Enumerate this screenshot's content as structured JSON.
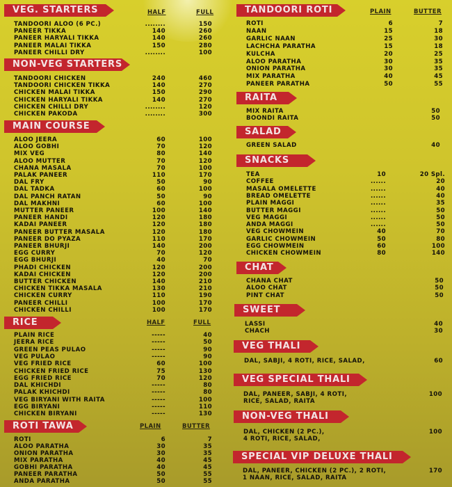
{
  "left": [
    {
      "title": "VEG. STARTERS",
      "headers": [
        "HALF",
        "FULL"
      ],
      "items": [
        {
          "name": "TANDOORI ALOO (6 PC.)",
          "a": "........",
          "b": "150"
        },
        {
          "name": "PANEER TIKKA",
          "a": "140",
          "b": "260"
        },
        {
          "name": "PANEER HARYALI TIKKA",
          "a": "140",
          "b": "260"
        },
        {
          "name": "PANEER MALAI TIKKA",
          "a": "150",
          "b": "280"
        },
        {
          "name": "PANEER CHILLI DRY",
          "a": "........",
          "b": "100"
        }
      ]
    },
    {
      "title": "NON-VEG STARTERS",
      "headers": [],
      "items": [
        {
          "name": "TANDOORI CHICKEN",
          "a": "240",
          "b": "460"
        },
        {
          "name": "TANDOORI CHICKEN TIKKA",
          "a": "140",
          "b": "270"
        },
        {
          "name": "CHICKEN MALAI TIKKA",
          "a": "150",
          "b": "290"
        },
        {
          "name": "CHICKEN HARYALI TIKKA",
          "a": "140",
          "b": "270"
        },
        {
          "name": "CHICKEN CHILLI DRY",
          "a": "........",
          "b": "120"
        },
        {
          "name": "CHICKEN PAKODA",
          "a": "........",
          "b": "300"
        }
      ]
    },
    {
      "title": "MAIN COURSE",
      "headers": [],
      "items": [
        {
          "name": "ALOO JEERA",
          "a": "60",
          "b": "100"
        },
        {
          "name": "ALOO GOBHI",
          "a": "70",
          "b": "120"
        },
        {
          "name": "MIX VEG",
          "a": "80",
          "b": "140"
        },
        {
          "name": "ALOO MUTTER",
          "a": "70",
          "b": "120"
        },
        {
          "name": "CHANA MASALA",
          "a": "70",
          "b": "100"
        },
        {
          "name": "PALAK PANEER",
          "a": "110",
          "b": "170"
        },
        {
          "name": "DAL FRY",
          "a": "50",
          "b": "90"
        },
        {
          "name": "DAL TADKA",
          "a": "60",
          "b": "100"
        },
        {
          "name": "DAL PANCH RATAN",
          "a": "50",
          "b": "90"
        },
        {
          "name": "DAL MAKHNI",
          "a": "60",
          "b": "100"
        },
        {
          "name": "MUTTER PANEER",
          "a": "100",
          "b": "140"
        },
        {
          "name": "PANEER HANDI",
          "a": "120",
          "b": "180"
        },
        {
          "name": "KADAI PANEER",
          "a": "120",
          "b": "180"
        },
        {
          "name": "PANEER BUTTER MASALA",
          "a": "120",
          "b": "180"
        },
        {
          "name": "PANEER DO PYAZA",
          "a": "110",
          "b": "170"
        },
        {
          "name": "PANEER BHURJI",
          "a": "140",
          "b": "200"
        },
        {
          "name": "EGG CURRY",
          "a": "70",
          "b": "120"
        },
        {
          "name": "EGG BHURJI",
          "a": "40",
          "b": "70"
        },
        {
          "name": "PHADI CHICKEN",
          "a": "120",
          "b": "200"
        },
        {
          "name": "KADAI CHICKEN",
          "a": "120",
          "b": "200"
        },
        {
          "name": "BUTTER CHICKEN",
          "a": "140",
          "b": "210"
        },
        {
          "name": "CHICKEN TIKKA MASALA",
          "a": "130",
          "b": "210"
        },
        {
          "name": "CHICKEN CURRY",
          "a": "110",
          "b": "190"
        },
        {
          "name": "PANEER CHILLI",
          "a": "100",
          "b": "170"
        },
        {
          "name": "CHICKEN CHILLI",
          "a": "100",
          "b": "170"
        }
      ]
    },
    {
      "title": "RICE",
      "headers": [
        "HALF",
        "FULL"
      ],
      "items": [
        {
          "name": "PLAIN RICE",
          "a": "-----",
          "b": "40"
        },
        {
          "name": "JEERA RICE",
          "a": "-----",
          "b": "50"
        },
        {
          "name": "GREEN PEAS PULAO",
          "a": "-----",
          "b": "90"
        },
        {
          "name": "VEG PULAO",
          "a": "-----",
          "b": "90"
        },
        {
          "name": "VEG FRIED RICE",
          "a": "60",
          "b": "100"
        },
        {
          "name": "CHICKEN FRIED RICE",
          "a": "75",
          "b": "130"
        },
        {
          "name": "EGG FRIED RICE",
          "a": "70",
          "b": "120"
        },
        {
          "name": "DAL KHICHDI",
          "a": "-----",
          "b": "80"
        },
        {
          "name": "PALAK KHICHDI",
          "a": "-----",
          "b": "80"
        },
        {
          "name": "VEG BIRYANI WITH RAITA",
          "a": "-----",
          "b": "100"
        },
        {
          "name": "EGG BIRYANI",
          "a": "-----",
          "b": "110"
        },
        {
          "name": "CHICKEN BIRYANI",
          "a": "-----",
          "b": "130"
        }
      ]
    },
    {
      "title": "ROTI TAWA",
      "headers": [
        "PLAIN",
        "BUTTER"
      ],
      "items": [
        {
          "name": "ROTI",
          "a": "6",
          "b": "7"
        },
        {
          "name": "ALOO PARATHA",
          "a": "30",
          "b": "35"
        },
        {
          "name": "ONION PARATHA",
          "a": "30",
          "b": "35"
        },
        {
          "name": "MIX PARATHA",
          "a": "40",
          "b": "45"
        },
        {
          "name": "GOBHI PARATHA",
          "a": "40",
          "b": "45"
        },
        {
          "name": "PANEER PARATHA",
          "a": "50",
          "b": "55"
        },
        {
          "name": "ANDA PARATHA",
          "a": "50",
          "b": "55"
        }
      ]
    }
  ],
  "right": [
    {
      "title": "TANDOORI ROTI",
      "headers": [
        "PLAIN",
        "BUTTER"
      ],
      "items": [
        {
          "name": "ROTI",
          "a": "6",
          "b": "7"
        },
        {
          "name": "NAAN",
          "a": "15",
          "b": "18"
        },
        {
          "name": "GARLIC NAAN",
          "a": "25",
          "b": "30"
        },
        {
          "name": "LACHCHA PARATHA",
          "a": "15",
          "b": "18"
        },
        {
          "name": "KULCHA",
          "a": "20",
          "b": "25"
        },
        {
          "name": "ALOO PARATHA",
          "a": "30",
          "b": "35"
        },
        {
          "name": "ONION PARATHA",
          "a": "30",
          "b": "35"
        },
        {
          "name": "MIX PARATHA",
          "a": "40",
          "b": "45"
        },
        {
          "name": "PANEER PARATHA",
          "a": "50",
          "b": "55"
        }
      ]
    },
    {
      "title": "RAITA",
      "headers": [],
      "items": [
        {
          "name": "MIX RAITA",
          "a": "",
          "b": "50"
        },
        {
          "name": "BOONDI RAITA",
          "a": "",
          "b": "50"
        }
      ]
    },
    {
      "title": "SALAD",
      "headers": [],
      "items": [
        {
          "name": "GREEN SALAD",
          "a": "",
          "b": "40"
        }
      ]
    },
    {
      "title": "SNACKS",
      "headers": [],
      "items": [
        {
          "name": "TEA",
          "a": "10",
          "b": "20 Spl."
        },
        {
          "name": "COFFEE",
          "a": "......",
          "b": "20"
        },
        {
          "name": "MASALA OMELETTE",
          "a": "......",
          "b": "40"
        },
        {
          "name": "BREAD OMELETTE",
          "a": "......",
          "b": "40"
        },
        {
          "name": "PLAIN MAGGI",
          "a": "......",
          "b": "35"
        },
        {
          "name": "BUTTER MAGGI",
          "a": "......",
          "b": "50"
        },
        {
          "name": "VEG MAGGI",
          "a": "......",
          "b": "50"
        },
        {
          "name": "ANDA MAGGI",
          "a": "......",
          "b": "50"
        },
        {
          "name": "VEG CHOWMEIN",
          "a": "40",
          "b": "70"
        },
        {
          "name": "GARLIC CHOWMEIN",
          "a": "50",
          "b": "80"
        },
        {
          "name": "EGG CHOWMEIN",
          "a": "60",
          "b": "100"
        },
        {
          "name": "CHICKEN CHOWMEIN",
          "a": "80",
          "b": "140"
        }
      ]
    },
    {
      "title": "CHAT",
      "headers": [],
      "items": [
        {
          "name": "CHANA CHAT",
          "a": "",
          "b": "50"
        },
        {
          "name": "ALOO CHAT",
          "a": "",
          "b": "50"
        },
        {
          "name": "PINT CHAT",
          "a": "",
          "b": "50"
        }
      ]
    },
    {
      "title": "SWEET",
      "headers": [],
      "items": [
        {
          "name": "LASSI",
          "a": "",
          "b": "40"
        },
        {
          "name": "CHACH",
          "a": "",
          "b": "30"
        }
      ]
    },
    {
      "title": "VEG THALI",
      "headers": [],
      "items": [
        {
          "name": "DAL, SABJI, 4 ROTI, RICE, SALAD,",
          "a": "",
          "b": "60"
        }
      ]
    },
    {
      "title": "VEG SPECIAL THALI",
      "headers": [],
      "items": [
        {
          "name": "DAL, PANEER, SABJI, 4 ROTI,",
          "a": "",
          "b": "100"
        },
        {
          "name": "RICE, SALAD, RAITA",
          "a": "",
          "b": ""
        }
      ]
    },
    {
      "title": "NON-VEG THALI",
      "headers": [],
      "items": [
        {
          "name": "DAL, CHICKEN (2 PC.),",
          "a": "",
          "b": "100"
        },
        {
          "name": "4 ROTI, RICE, SALAD,",
          "a": "",
          "b": ""
        }
      ]
    },
    {
      "title": "SPECIAL VIP DELUXE THALI",
      "headers": [],
      "items": [
        {
          "name": "DAL, PANEER, CHICKEN (2 PC.), 2 ROTI,",
          "a": "",
          "b": "170"
        },
        {
          "name": "1 NAAN, RICE, SALAD, RAITA",
          "a": "",
          "b": ""
        }
      ]
    }
  ],
  "colors": {
    "banner": "#c3262d",
    "banner_text": "#f3e4e4",
    "board": "#d0c52c",
    "text": "#14120a"
  }
}
